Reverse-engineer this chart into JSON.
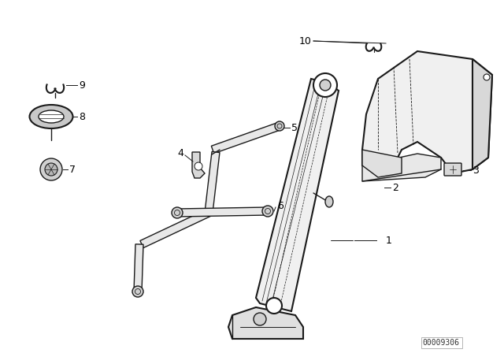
{
  "bg_color": "#ffffff",
  "line_color": "#1a1a1a",
  "part_number_text": "00009306",
  "figsize": [
    6.4,
    4.48
  ],
  "dpi": 100
}
